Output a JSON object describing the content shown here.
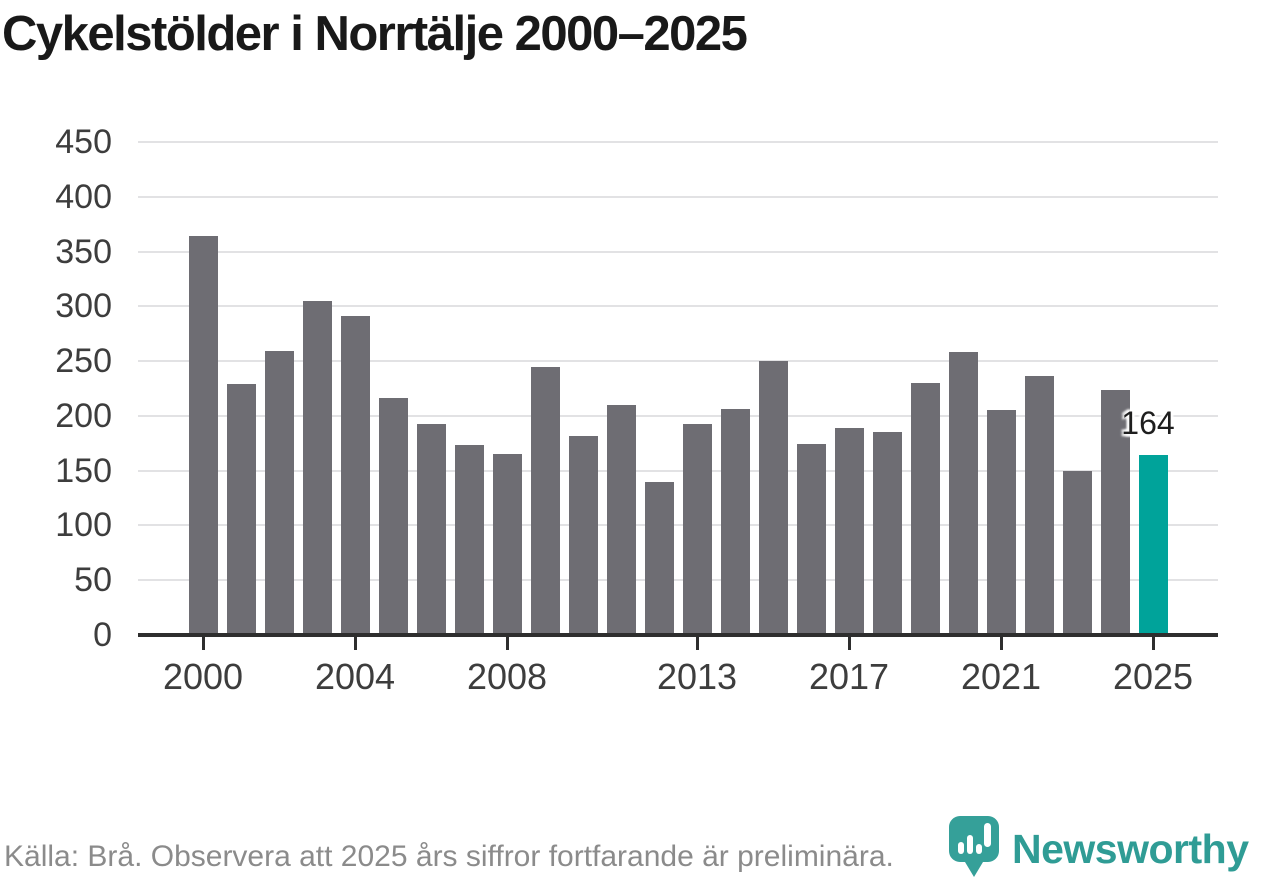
{
  "title": "Cykelstölder i Norrtälje 2000–2025",
  "chart_data": {
    "type": "bar",
    "title": "Cykelstölder i Norrtälje 2000–2025",
    "x": [
      2000,
      2001,
      2002,
      2003,
      2004,
      2005,
      2006,
      2007,
      2008,
      2009,
      2010,
      2011,
      2012,
      2013,
      2014,
      2015,
      2016,
      2017,
      2018,
      2019,
      2020,
      2021,
      2022,
      2023,
      2024,
      2025
    ],
    "values": [
      364,
      229,
      259,
      305,
      291,
      216,
      193,
      173,
      165,
      245,
      182,
      210,
      140,
      193,
      206,
      250,
      174,
      189,
      185,
      230,
      258,
      205,
      236,
      150,
      224,
      164
    ],
    "xlabel": "",
    "ylabel": "",
    "ylim": [
      0,
      450
    ],
    "y_ticks": [
      0,
      50,
      100,
      150,
      200,
      250,
      300,
      350,
      400,
      450
    ],
    "x_tick_years": [
      2000,
      2004,
      2008,
      2013,
      2017,
      2021,
      2025
    ],
    "grid": true,
    "legend": "none",
    "bar_color": "#6e6d73",
    "highlight_year": 2025,
    "highlight_color": "#00a39a",
    "annotation": {
      "text": "164",
      "year": 2025
    }
  },
  "footer": {
    "source_text": "Källa: Brå. Observera att 2025 års siffror fortfarande är preliminära.",
    "logo_text": "Newsworthy"
  },
  "colors": {
    "title": "#191919",
    "axis": "#2e2e2e",
    "tick_label": "#3d3d3d",
    "gridline": "#e2e2e4",
    "source_text": "#8b8b8b",
    "logo_teal": "#2f9c95"
  }
}
